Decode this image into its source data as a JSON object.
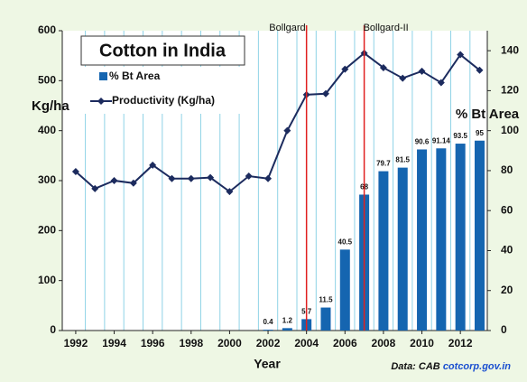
{
  "chart_data": {
    "type": "bar-line",
    "title": "Cotton in India",
    "x_label": "Year",
    "y_label": "Kg/ha",
    "y2_label": "% Bt Area",
    "source": [
      "Data: CAB",
      "cotcorp.gov.in"
    ],
    "x": [
      1992,
      1993,
      1994,
      1995,
      1996,
      1997,
      1998,
      1999,
      2000,
      2001,
      2002,
      2003,
      2004,
      2005,
      2006,
      2007,
      2008,
      2009,
      2010,
      2011,
      2012,
      2013
    ],
    "xlim": [
      1991.3,
      2013.4
    ],
    "xticks": [
      1992,
      1994,
      1996,
      1998,
      2000,
      2002,
      2004,
      2006,
      2008,
      2010,
      2012
    ],
    "ylim": [
      0,
      600
    ],
    "yticks": [
      0,
      100,
      200,
      300,
      400,
      500,
      600
    ],
    "y2lim": [
      0,
      150
    ],
    "y2ticks": [
      0,
      20,
      40,
      60,
      80,
      100,
      120,
      140
    ],
    "grid": "x",
    "series": [
      {
        "name": "% Bt Area",
        "type": "bar",
        "axis": "y2",
        "color": "#1565b0",
        "values": [
          null,
          null,
          null,
          null,
          null,
          null,
          null,
          null,
          null,
          null,
          0.4,
          1.2,
          5.7,
          11.5,
          40.5,
          68,
          79.7,
          81.5,
          90.6,
          91.14,
          93.5,
          95
        ]
      },
      {
        "name": "Productivity (Kg/ha)",
        "type": "line",
        "color": "#1c2b5e",
        "values": [
          318,
          284,
          300,
          295,
          331,
          304,
          304,
          306,
          278,
          309,
          304,
          400,
          472,
          474,
          523,
          555,
          526,
          505,
          519,
          496,
          552,
          521
        ]
      }
    ],
    "annotations": [
      {
        "text": "Bollgard",
        "x": 2004,
        "color": "#e02020"
      },
      {
        "text": "Bollgard-II",
        "x": 2007,
        "color": "#e02020"
      }
    ]
  }
}
